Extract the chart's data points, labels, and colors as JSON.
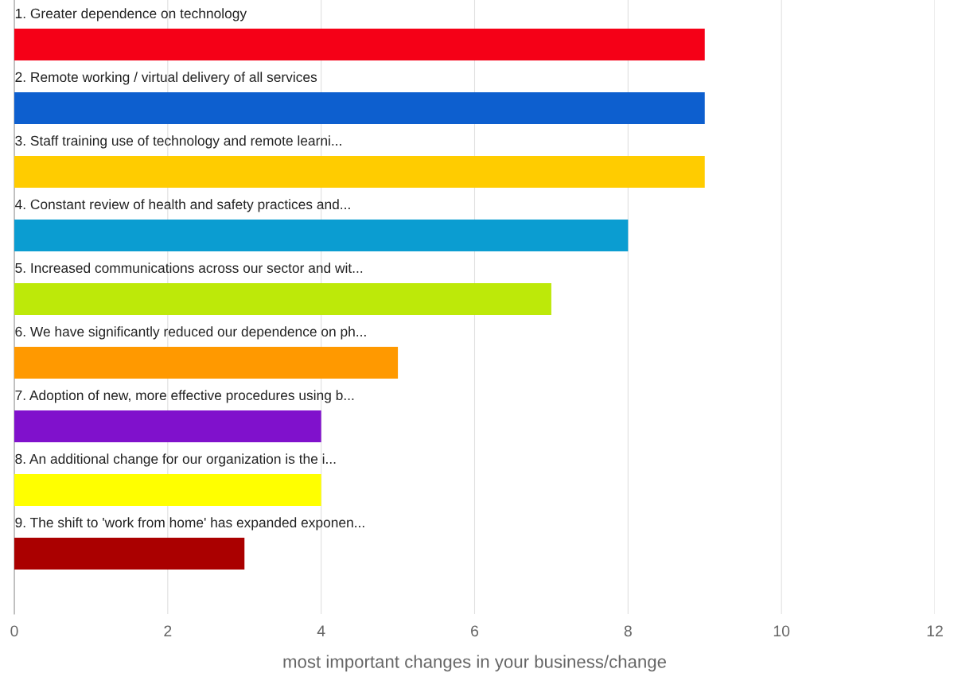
{
  "chart_data": {
    "type": "bar",
    "orientation": "horizontal",
    "xlabel": "most important changes in your business/change",
    "categories": [
      "1. Greater dependence on technology",
      "2. Remote working / virtual delivery of all services",
      "3. Staff training use of technology and remote learni...",
      "4. Constant review of health and safety practices and...",
      "5. Increased communications across our sector and wit...",
      "6. We have significantly reduced our dependence on ph...",
      "7. Adoption of new, more effective procedures using b...",
      "8. An additional change for our organization is the i...",
      "9. The shift to 'work from home' has expanded exponen..."
    ],
    "values": [
      9,
      9,
      9,
      8,
      7,
      5,
      4,
      4,
      3
    ],
    "colors": [
      "#f50017",
      "#0d5fcf",
      "#ffcc00",
      "#0b9dd1",
      "#bde909",
      "#ff9900",
      "#8011cc",
      "#ffff00",
      "#aa0000"
    ],
    "xlim": [
      0,
      12
    ],
    "xticks": [
      0,
      2,
      4,
      6,
      8,
      10,
      12
    ],
    "grid": "x"
  }
}
